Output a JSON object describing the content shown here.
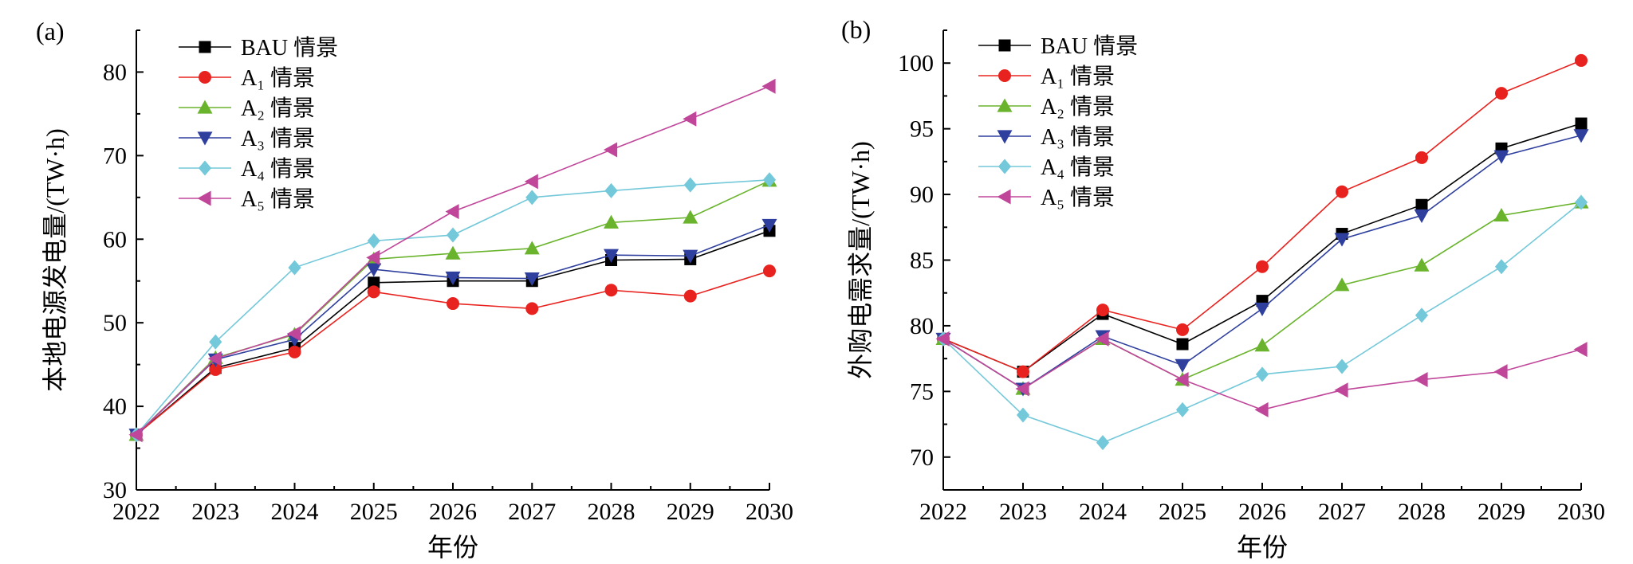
{
  "chart_data": [
    {
      "type": "line",
      "panel_label": "(a)",
      "xlabel": "年份",
      "ylabel": "本地电源发电量/(TW·h)",
      "x": [
        2022,
        2023,
        2024,
        2025,
        2026,
        2027,
        2028,
        2029,
        2030
      ],
      "xlim": [
        2022,
        2030
      ],
      "ylim": [
        30,
        85
      ],
      "yticks": [
        30,
        40,
        50,
        60,
        70,
        80
      ],
      "legend_position": "top-left",
      "series": [
        {
          "name": "BAU 情景",
          "marker": "square",
          "color": "#000000",
          "values": [
            36.6,
            44.6,
            47.0,
            54.8,
            55.0,
            55.0,
            57.5,
            57.6,
            61.0
          ]
        },
        {
          "name": "A₁ 情景",
          "marker": "circle",
          "color": "#e8231f",
          "values": [
            36.6,
            44.4,
            46.5,
            53.7,
            52.3,
            51.7,
            53.9,
            53.2,
            56.2
          ]
        },
        {
          "name": "A₂ 情景",
          "marker": "triangle-up",
          "color": "#6ab42d",
          "values": [
            36.6,
            45.8,
            48.6,
            57.6,
            58.3,
            58.9,
            62.0,
            62.6,
            67.0
          ]
        },
        {
          "name": "A₃ 情景",
          "marker": "triangle-down",
          "color": "#2e3f9e",
          "values": [
            36.6,
            45.6,
            48.0,
            56.4,
            55.4,
            55.3,
            58.1,
            58.0,
            61.7
          ]
        },
        {
          "name": "A₄ 情景",
          "marker": "diamond",
          "color": "#73c8d9",
          "values": [
            36.6,
            47.7,
            56.6,
            59.8,
            60.5,
            65.0,
            65.8,
            66.5,
            67.1
          ]
        },
        {
          "name": "A₅ 情景",
          "marker": "triangle-left",
          "color": "#c0469a",
          "values": [
            36.6,
            45.7,
            48.7,
            57.8,
            63.3,
            66.9,
            70.7,
            74.4,
            78.3
          ]
        }
      ]
    },
    {
      "type": "line",
      "panel_label": "(b)",
      "xlabel": "年份",
      "ylabel": "外购电需求量/(TW·h)",
      "x": [
        2022,
        2023,
        2024,
        2025,
        2026,
        2027,
        2028,
        2029,
        2030
      ],
      "xlim": [
        2022,
        2030
      ],
      "ylim": [
        67.5,
        102.5
      ],
      "yticks": [
        70,
        75,
        80,
        85,
        90,
        95,
        100
      ],
      "legend_position": "top-left",
      "series": [
        {
          "name": "BAU 情景",
          "marker": "square",
          "color": "#000000",
          "values": [
            79.0,
            76.5,
            80.9,
            78.6,
            81.9,
            87.0,
            89.2,
            93.5,
            95.4
          ]
        },
        {
          "name": "A₁ 情景",
          "marker": "circle",
          "color": "#e8231f",
          "values": [
            79.0,
            76.5,
            81.2,
            79.7,
            84.5,
            90.2,
            92.8,
            97.7,
            100.2
          ]
        },
        {
          "name": "A₂ 情景",
          "marker": "triangle-up",
          "color": "#6ab42d",
          "values": [
            79.0,
            75.2,
            79.0,
            75.9,
            78.5,
            83.1,
            84.6,
            88.4,
            89.4
          ]
        },
        {
          "name": "A₃ 情景",
          "marker": "triangle-down",
          "color": "#2e3f9e",
          "values": [
            79.0,
            75.2,
            79.2,
            77.0,
            81.3,
            86.6,
            88.4,
            92.9,
            94.5
          ]
        },
        {
          "name": "A₄ 情景",
          "marker": "diamond",
          "color": "#73c8d9",
          "values": [
            79.0,
            73.2,
            71.1,
            73.6,
            76.3,
            76.9,
            80.8,
            84.5,
            89.4
          ]
        },
        {
          "name": "A₅ 情景",
          "marker": "triangle-left",
          "color": "#c0469a",
          "values": [
            79.0,
            75.2,
            79.0,
            75.9,
            73.6,
            75.1,
            75.9,
            76.5,
            78.2
          ]
        }
      ]
    }
  ]
}
